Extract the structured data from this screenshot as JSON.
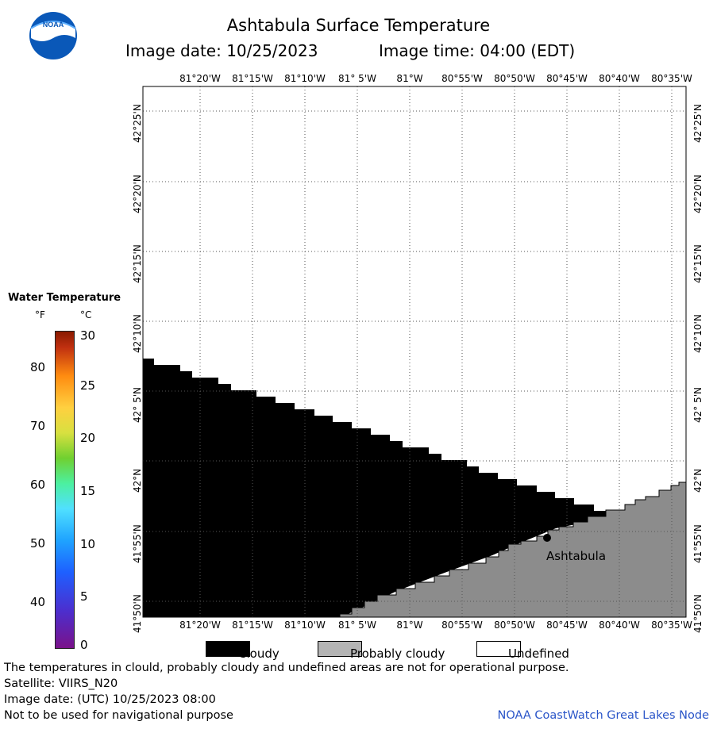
{
  "title": "Ashtabula Surface Temperature",
  "image_date_label": "Image date: 10/25/2023",
  "image_time_label": "Image time: 04:00 (EDT)",
  "logo": {
    "icon": "noaa-logo",
    "text": "NOAA"
  },
  "map": {
    "lon_labels": [
      "81°20'W",
      "81°15'W",
      "81°10'W",
      "81° 5'W",
      "81°W",
      "80°55'W",
      "80°50'W",
      "80°45'W",
      "80°40'W",
      "80°35'W"
    ],
    "lat_labels": [
      "42°25'N",
      "42°20'N",
      "42°15'N",
      "42°10'N",
      "42° 5'N",
      "42°N",
      "41°55'N",
      "41°50'N"
    ],
    "place": "Ashtabula",
    "colors": {
      "cloudy": "#000000",
      "probably_cloudy": "#8c8c8c",
      "undefined": "#ffffff",
      "grid": "#000000"
    }
  },
  "legend": {
    "title": "Water Temperature",
    "unit_f": "°F",
    "unit_c": "°C",
    "f_ticks": [
      "80",
      "70",
      "60",
      "50",
      "40"
    ],
    "c_ticks": [
      "30",
      "25",
      "20",
      "15",
      "10",
      "5",
      "0"
    ]
  },
  "key": {
    "cloudy": "Cloudy",
    "probably_cloudy": "Probably cloudy",
    "undefined": "Undefined"
  },
  "footer": {
    "warning": "The temperatures in clould, probably cloudy and undefined areas are not for operational purpose.",
    "satellite": "Satellite: VIIRS_N20",
    "utc_date": "Image date: (UTC) 10/25/2023  08:00",
    "nav": "Not to be used for navigational purpose",
    "credit": "NOAA CoastWatch Great Lakes Node"
  }
}
